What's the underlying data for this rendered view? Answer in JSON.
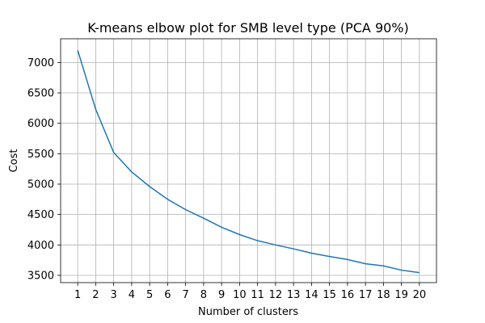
{
  "chart_data": {
    "type": "line",
    "title": "K-means elbow plot for SMB level type (PCA 90%)",
    "xlabel": "Number of clusters",
    "ylabel": "Cost",
    "x": [
      1,
      2,
      3,
      4,
      5,
      6,
      7,
      8,
      9,
      10,
      11,
      12,
      13,
      14,
      15,
      16,
      17,
      18,
      19,
      20
    ],
    "series": [
      {
        "values": [
          7200,
          6230,
          5520,
          5200,
          4960,
          4750,
          4580,
          4440,
          4290,
          4170,
          4070,
          4000,
          3935,
          3865,
          3810,
          3760,
          3690,
          3655,
          3585,
          3545
        ],
        "color": "#1f77b4"
      }
    ],
    "xticks": [
      "1",
      "2",
      "3",
      "4",
      "5",
      "6",
      "7",
      "8",
      "9",
      "10",
      "11",
      "12",
      "13",
      "14",
      "15",
      "16",
      "17",
      "18",
      "19",
      "20"
    ],
    "yticks": [
      "3500",
      "4000",
      "4500",
      "5000",
      "5500",
      "6000",
      "6500",
      "7000"
    ],
    "ylim": [
      3380,
      7390
    ],
    "xlim": [
      0.05,
      20.95
    ],
    "grid": true
  }
}
